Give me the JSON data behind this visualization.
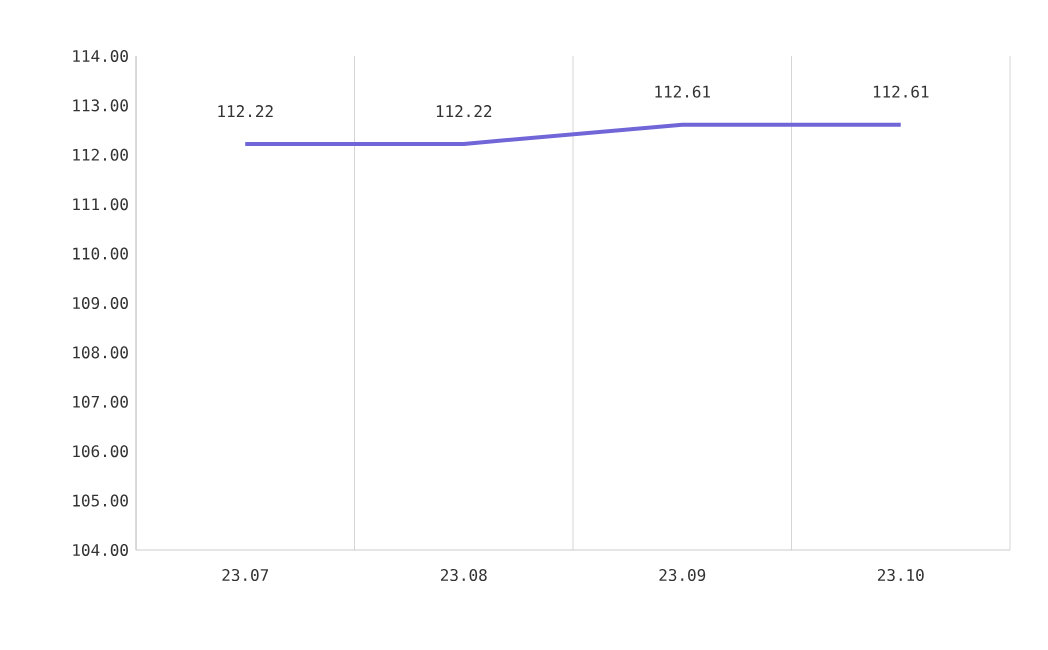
{
  "chart_data": {
    "type": "line",
    "categories": [
      "23.07",
      "23.08",
      "23.09",
      "23.10"
    ],
    "series": [
      {
        "color": "#7166d8",
        "values": [
          112.22,
          112.22,
          112.61,
          112.61
        ]
      }
    ],
    "ylim": [
      104,
      114
    ],
    "yticks": [
      {
        "value": 104,
        "label": "104.00"
      },
      {
        "value": 105,
        "label": "105.00"
      },
      {
        "value": 106,
        "label": "106.00"
      },
      {
        "value": 107,
        "label": "107.00"
      },
      {
        "value": 108,
        "label": "108.00"
      },
      {
        "value": 109,
        "label": "109.00"
      },
      {
        "value": 110,
        "label": "110.00"
      },
      {
        "value": 111,
        "label": "111.00"
      },
      {
        "value": 112,
        "label": "112.00"
      },
      {
        "value": 113,
        "label": "113.00"
      },
      {
        "value": 114,
        "label": "114.00"
      }
    ],
    "grid": "x",
    "data_labels": true,
    "marker": "none",
    "line_style": "solid"
  }
}
